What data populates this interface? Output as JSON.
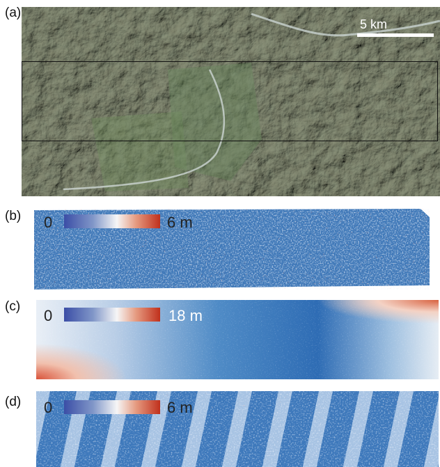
{
  "panels": {
    "a": {
      "label": "(a)",
      "scalebar": "5 km"
    },
    "b": {
      "label": "(b)",
      "cb_min": "0",
      "cb_max": "6 m"
    },
    "c": {
      "label": "(c)",
      "cb_min": "0",
      "cb_max": "18 m"
    },
    "d": {
      "label": "(d)",
      "cb_min": "0",
      "cb_max": "6 m"
    }
  },
  "colors": {
    "colormap_low": "#3b4ea6",
    "colormap_mid": "#f6f6f6",
    "colormap_high": "#c0301c",
    "terrain": "#5d6a55",
    "extent_box": "#111111"
  }
}
